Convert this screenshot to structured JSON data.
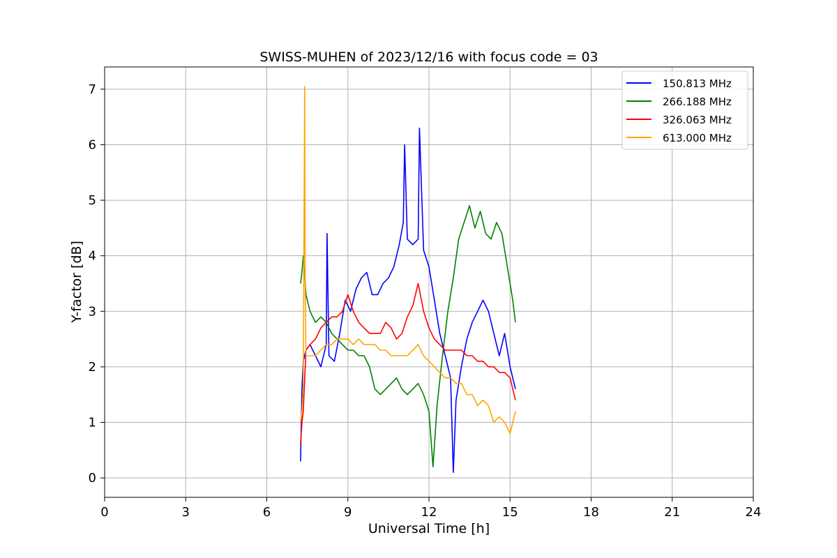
{
  "chart_data": {
    "type": "line",
    "title": "SWISS-MUHEN of 2023/12/16 with focus code = 03",
    "xlabel": "Universal Time [h]",
    "ylabel": "Y-factor [dB]",
    "xlim": [
      0,
      24
    ],
    "ylim": [
      -0.35,
      7.4
    ],
    "xticks": [
      0,
      3,
      6,
      9,
      12,
      15,
      18,
      21,
      24
    ],
    "yticks": [
      0,
      1,
      2,
      3,
      4,
      5,
      6,
      7
    ],
    "grid": true,
    "legend_position": "top-right",
    "series": [
      {
        "name": "150.813 MHz",
        "color": "#0000ff",
        "x": [
          7.25,
          7.3,
          7.35,
          7.45,
          7.6,
          7.8,
          8.0,
          8.2,
          8.23,
          8.3,
          8.5,
          8.7,
          8.9,
          9.1,
          9.3,
          9.5,
          9.7,
          9.9,
          10.1,
          10.3,
          10.5,
          10.7,
          10.9,
          11.05,
          11.1,
          11.2,
          11.4,
          11.6,
          11.65,
          11.8,
          12.0,
          12.2,
          12.4,
          12.6,
          12.8,
          12.9,
          13.0,
          13.2,
          13.4,
          13.6,
          13.8,
          14.0,
          14.2,
          14.4,
          14.6,
          14.8,
          15.0,
          15.2
        ],
        "y": [
          0.3,
          1.6,
          2.1,
          2.3,
          2.4,
          2.2,
          2.0,
          2.4,
          4.4,
          2.2,
          2.1,
          2.6,
          3.2,
          3.0,
          3.4,
          3.6,
          3.7,
          3.3,
          3.3,
          3.5,
          3.6,
          3.8,
          4.2,
          4.6,
          6.0,
          4.3,
          4.2,
          4.3,
          6.3,
          4.1,
          3.8,
          3.2,
          2.6,
          2.2,
          1.8,
          0.1,
          1.4,
          2.0,
          2.5,
          2.8,
          3.0,
          3.2,
          3.0,
          2.6,
          2.2,
          2.6,
          2.0,
          1.6
        ]
      },
      {
        "name": "266.188 MHz",
        "color": "#008000",
        "x": [
          7.25,
          7.3,
          7.35,
          7.45,
          7.6,
          7.8,
          8.0,
          8.2,
          8.4,
          8.6,
          8.8,
          9.0,
          9.2,
          9.4,
          9.6,
          9.8,
          10.0,
          10.2,
          10.4,
          10.6,
          10.8,
          11.0,
          11.2,
          11.4,
          11.6,
          11.8,
          12.0,
          12.15,
          12.3,
          12.5,
          12.7,
          12.9,
          13.1,
          13.3,
          13.5,
          13.7,
          13.9,
          14.1,
          14.3,
          14.5,
          14.7,
          14.9,
          15.1,
          15.2
        ],
        "y": [
          3.5,
          3.7,
          4.0,
          3.3,
          3.0,
          2.8,
          2.9,
          2.8,
          2.6,
          2.5,
          2.4,
          2.3,
          2.3,
          2.2,
          2.2,
          2.0,
          1.6,
          1.5,
          1.6,
          1.7,
          1.8,
          1.6,
          1.5,
          1.6,
          1.7,
          1.5,
          1.2,
          0.2,
          1.3,
          2.2,
          3.0,
          3.6,
          4.3,
          4.6,
          4.9,
          4.5,
          4.8,
          4.4,
          4.3,
          4.6,
          4.4,
          3.8,
          3.2,
          2.8
        ]
      },
      {
        "name": "326.063 MHz",
        "color": "#ff0000",
        "x": [
          7.25,
          7.3,
          7.35,
          7.45,
          7.6,
          7.8,
          8.0,
          8.2,
          8.4,
          8.6,
          8.8,
          9.0,
          9.2,
          9.4,
          9.6,
          9.8,
          10.0,
          10.2,
          10.4,
          10.6,
          10.8,
          11.0,
          11.2,
          11.4,
          11.6,
          11.8,
          12.0,
          12.2,
          12.4,
          12.6,
          12.8,
          13.0,
          13.2,
          13.4,
          13.6,
          13.8,
          14.0,
          14.2,
          14.4,
          14.6,
          14.8,
          15.0,
          15.2
        ],
        "y": [
          0.6,
          1.0,
          1.2,
          2.3,
          2.4,
          2.5,
          2.7,
          2.8,
          2.9,
          2.9,
          3.0,
          3.3,
          3.0,
          2.8,
          2.7,
          2.6,
          2.6,
          2.6,
          2.8,
          2.7,
          2.5,
          2.6,
          2.9,
          3.1,
          3.5,
          3.0,
          2.7,
          2.5,
          2.4,
          2.3,
          2.3,
          2.3,
          2.3,
          2.2,
          2.2,
          2.1,
          2.1,
          2.0,
          2.0,
          1.9,
          1.9,
          1.8,
          1.4
        ]
      },
      {
        "name": "613.000 MHz",
        "color": "#ffa500",
        "x": [
          7.25,
          7.3,
          7.35,
          7.4,
          7.42,
          7.45,
          7.6,
          7.8,
          8.0,
          8.2,
          8.4,
          8.6,
          8.8,
          9.0,
          9.2,
          9.4,
          9.6,
          9.8,
          10.0,
          10.2,
          10.4,
          10.6,
          10.8,
          11.0,
          11.2,
          11.4,
          11.6,
          11.8,
          12.0,
          12.2,
          12.4,
          12.6,
          12.8,
          13.0,
          13.2,
          13.4,
          13.6,
          13.8,
          14.0,
          14.2,
          14.4,
          14.6,
          14.8,
          15.0,
          15.2
        ],
        "y": [
          1.0,
          1.2,
          1.6,
          7.05,
          3.5,
          2.2,
          2.2,
          2.2,
          2.3,
          2.4,
          2.4,
          2.5,
          2.5,
          2.5,
          2.4,
          2.5,
          2.4,
          2.4,
          2.4,
          2.3,
          2.3,
          2.2,
          2.2,
          2.2,
          2.2,
          2.3,
          2.4,
          2.2,
          2.1,
          2.0,
          1.9,
          1.8,
          1.8,
          1.7,
          1.7,
          1.5,
          1.5,
          1.3,
          1.4,
          1.3,
          1.0,
          1.1,
          1.0,
          0.8,
          1.2
        ]
      }
    ]
  }
}
